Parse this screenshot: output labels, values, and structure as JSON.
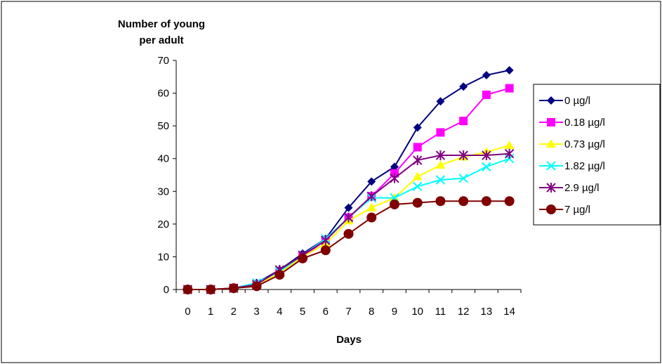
{
  "chart_data": {
    "type": "line",
    "ylabel": "Number of young per adult",
    "ylabel_lines": [
      "Number of young",
      "per adult"
    ],
    "xlabel": "Days",
    "x": [
      0,
      1,
      2,
      3,
      4,
      5,
      6,
      7,
      8,
      9,
      10,
      11,
      12,
      13,
      14
    ],
    "ylim": [
      0,
      70
    ],
    "yticks": [
      0,
      10,
      20,
      30,
      40,
      50,
      60,
      70
    ],
    "grid": false,
    "legend_position": "right",
    "series": [
      {
        "name": "0 µg/l",
        "color": "#000080",
        "marker": "diamond",
        "values": [
          0,
          0,
          0.4,
          2,
          6,
          11,
          15.5,
          25,
          33,
          37.5,
          49.5,
          57.5,
          62,
          65.5,
          67
        ]
      },
      {
        "name": "0.18 µg/l",
        "color": "#FF00FF",
        "marker": "square",
        "values": [
          0,
          0,
          0.4,
          1.5,
          5,
          10,
          15,
          22,
          28.5,
          35.5,
          43.5,
          48,
          51.5,
          59.5,
          61.5
        ]
      },
      {
        "name": "0.73 µg/l",
        "color": "#FFFF00",
        "marker": "triangle",
        "values": [
          0,
          0,
          0.4,
          1.5,
          5,
          10,
          14,
          21,
          25,
          28,
          34.5,
          38,
          40.5,
          42,
          44
        ]
      },
      {
        "name": "1.82 µg/l",
        "color": "#00FFFF",
        "marker": "x",
        "values": [
          0,
          0,
          0.4,
          2,
          5.5,
          10.5,
          15.5,
          22,
          28,
          28,
          31.5,
          33.5,
          34,
          37.5,
          40
        ]
      },
      {
        "name": "2.9 µg/l",
        "color": "#800080",
        "marker": "asterisk",
        "values": [
          0,
          0,
          0.4,
          1.5,
          6,
          10.5,
          15,
          22,
          28.5,
          34,
          39.5,
          41,
          41,
          41,
          41.5
        ]
      },
      {
        "name": "7 µg/l",
        "color": "#800000",
        "marker": "circle",
        "values": [
          0,
          0,
          0.4,
          1,
          4.5,
          9.5,
          12,
          17,
          22,
          26,
          26.5,
          27,
          27,
          27,
          27
        ]
      }
    ]
  }
}
